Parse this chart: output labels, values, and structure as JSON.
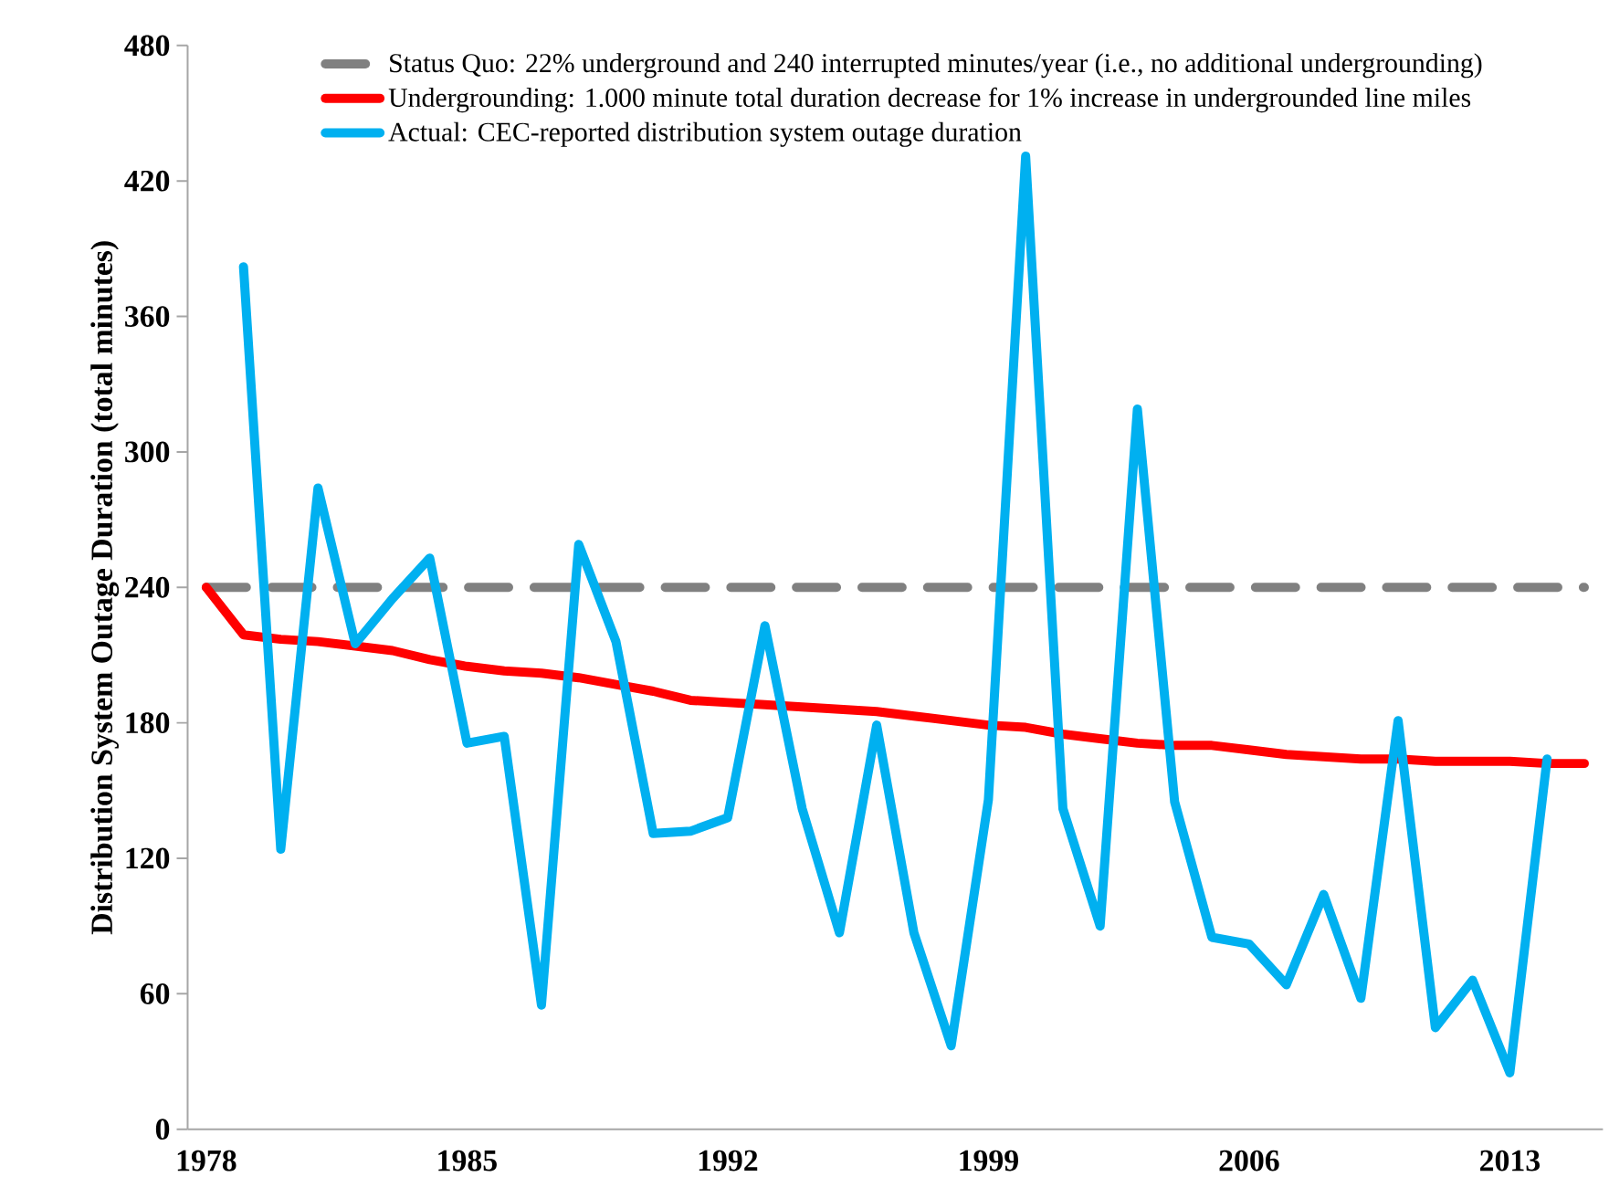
{
  "chart_data": {
    "type": "line",
    "categories": [
      "1978",
      null,
      null,
      null,
      null,
      null,
      null,
      "1985",
      null,
      null,
      null,
      null,
      null,
      null,
      "1992",
      null,
      null,
      null,
      null,
      null,
      null,
      "1999",
      null,
      null,
      null,
      null,
      null,
      null,
      "2006",
      null,
      null,
      null,
      null,
      null,
      null,
      "2013",
      null,
      null
    ],
    "series": [
      {
        "name": "Status Quo: 22% underground and 240 interrupted minutes/year (i.e., no additional undergrounding)",
        "color": "#808080",
        "line_style": "dashed",
        "values": [
          240,
          240,
          240,
          240,
          240,
          240,
          240,
          240,
          240,
          240,
          240,
          240,
          240,
          240,
          240,
          240,
          240,
          240,
          240,
          240,
          240,
          240,
          240,
          240,
          240,
          240,
          240,
          240,
          240,
          240,
          240,
          240,
          240,
          240,
          240,
          240,
          240,
          240
        ]
      },
      {
        "name": "Undergrounding: 1.000 minute total duration decrease for 1% increase in undergrounded line miles",
        "color": "#ff0000",
        "line_style": "solid",
        "values": [
          240,
          219,
          217,
          216,
          214,
          212,
          208,
          205,
          203,
          202,
          200,
          197,
          194,
          190,
          189,
          188,
          187,
          186,
          185,
          183,
          181,
          179,
          178,
          175,
          173,
          171,
          170,
          170,
          168,
          166,
          165,
          164,
          164,
          163,
          163,
          163,
          162,
          162
        ]
      },
      {
        "name": "Actual: CEC-reported distribution system outage duration",
        "color": "#00b0f0",
        "line_style": "solid",
        "values": [
          null,
          382,
          124,
          284,
          215,
          235,
          253,
          171,
          174,
          55,
          259,
          216,
          131,
          132,
          138,
          223,
          142,
          87,
          179,
          87,
          37,
          146,
          431,
          142,
          90,
          319,
          145,
          85,
          82,
          64,
          104,
          58,
          181,
          45,
          66,
          25,
          164,
          null
        ]
      }
    ],
    "ylabel": "Distribution System Outage Duration (total minutes)",
    "ylim": [
      0,
      480
    ],
    "yticks": [
      0,
      60,
      120,
      180,
      240,
      300,
      360,
      420,
      480
    ],
    "legend": "top"
  }
}
